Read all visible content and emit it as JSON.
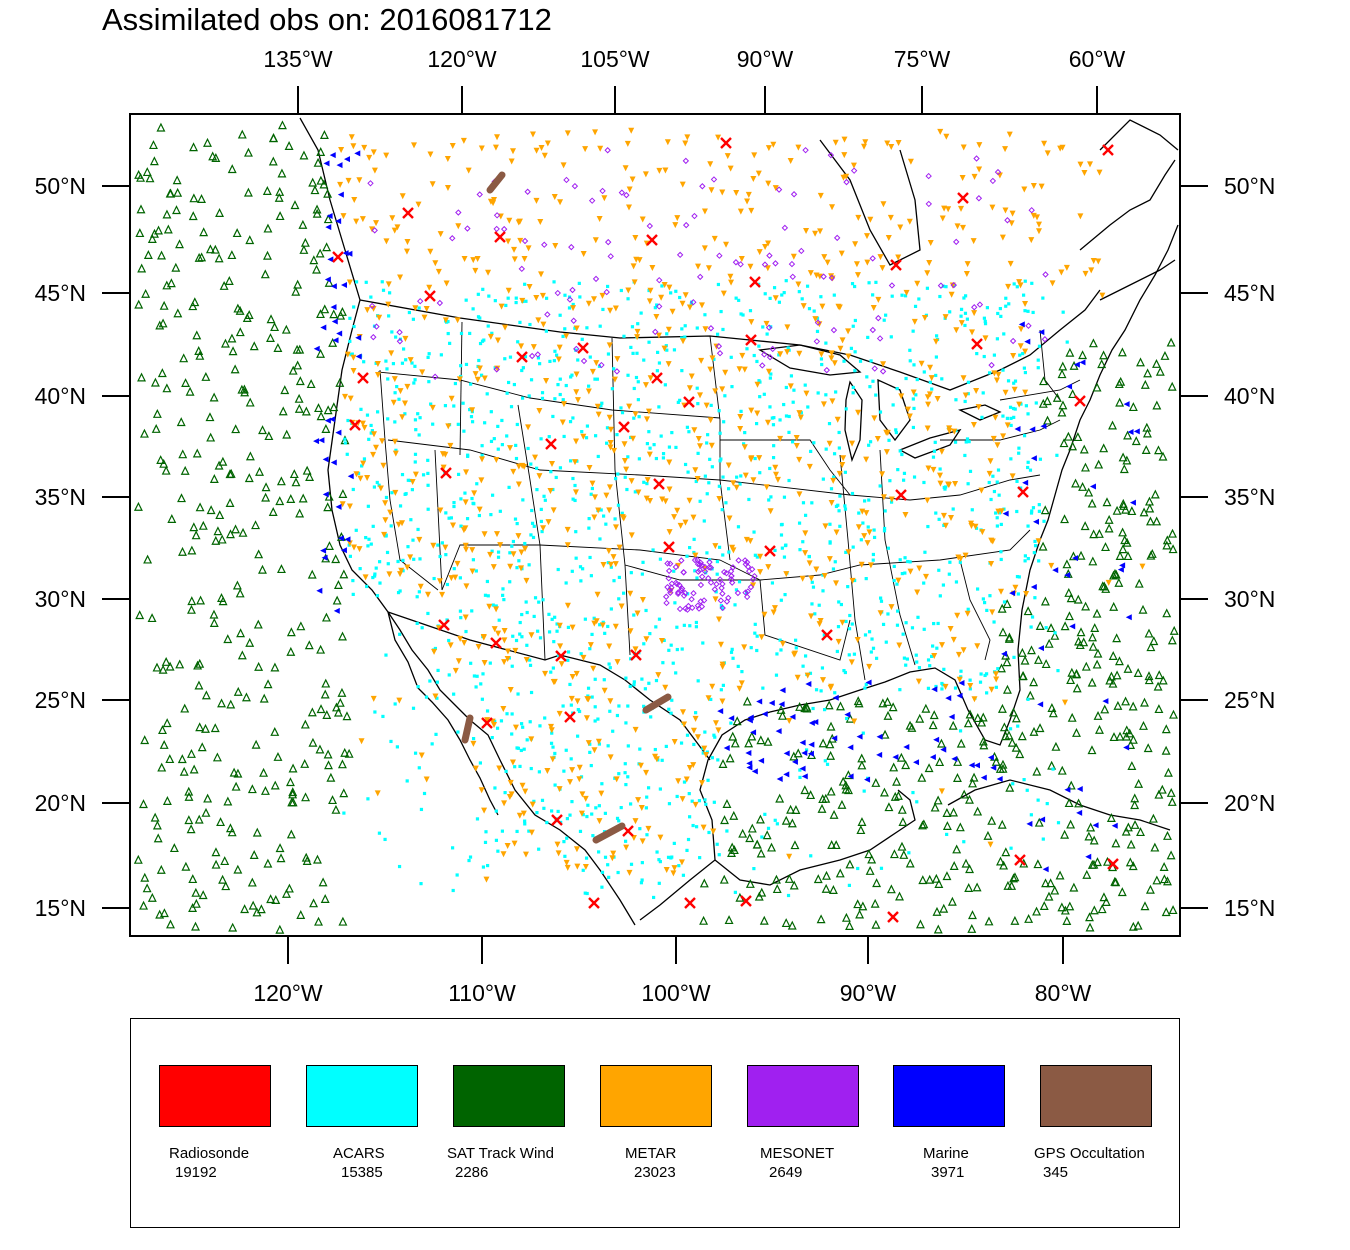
{
  "title": "Assimilated obs on: 2016081712",
  "chart_data": {
    "type": "scatter",
    "projection": "lambert-conformal",
    "region": "North America (CONUS, Mexico, Gulf of Mexico, Caribbean)",
    "date": "2016081712",
    "top_longitude_labels": [
      "135°W",
      "120°W",
      "105°W",
      "90°W",
      "75°W",
      "60°W"
    ],
    "bottom_longitude_labels": [
      "120°W",
      "110°W",
      "100°W",
      "90°W",
      "80°W"
    ],
    "latitude_labels": [
      "50°N",
      "45°N",
      "40°N",
      "35°N",
      "30°N",
      "25°N",
      "20°N",
      "15°N"
    ],
    "observation_types": [
      {
        "name": "Radiosonde",
        "count": "19192",
        "color": "#ff0000",
        "marker": "x"
      },
      {
        "name": "ACARS",
        "count": "15385",
        "color": "#00ffff",
        "marker": "square"
      },
      {
        "name": "SAT Track Wind",
        "count": "2286",
        "color": "#006400",
        "marker": "triangle-up"
      },
      {
        "name": "METAR",
        "count": "23023",
        "color": "#ffa500",
        "marker": "triangle-down"
      },
      {
        "name": "MESONET",
        "count": "2649",
        "color": "#a020f0",
        "marker": "diamond"
      },
      {
        "name": "Marine",
        "count": "3971",
        "color": "#0000ff",
        "marker": "triangle-left"
      },
      {
        "name": "GPS Occultation",
        "count": "345",
        "color": "#8b5a44",
        "marker": "segment"
      }
    ]
  }
}
